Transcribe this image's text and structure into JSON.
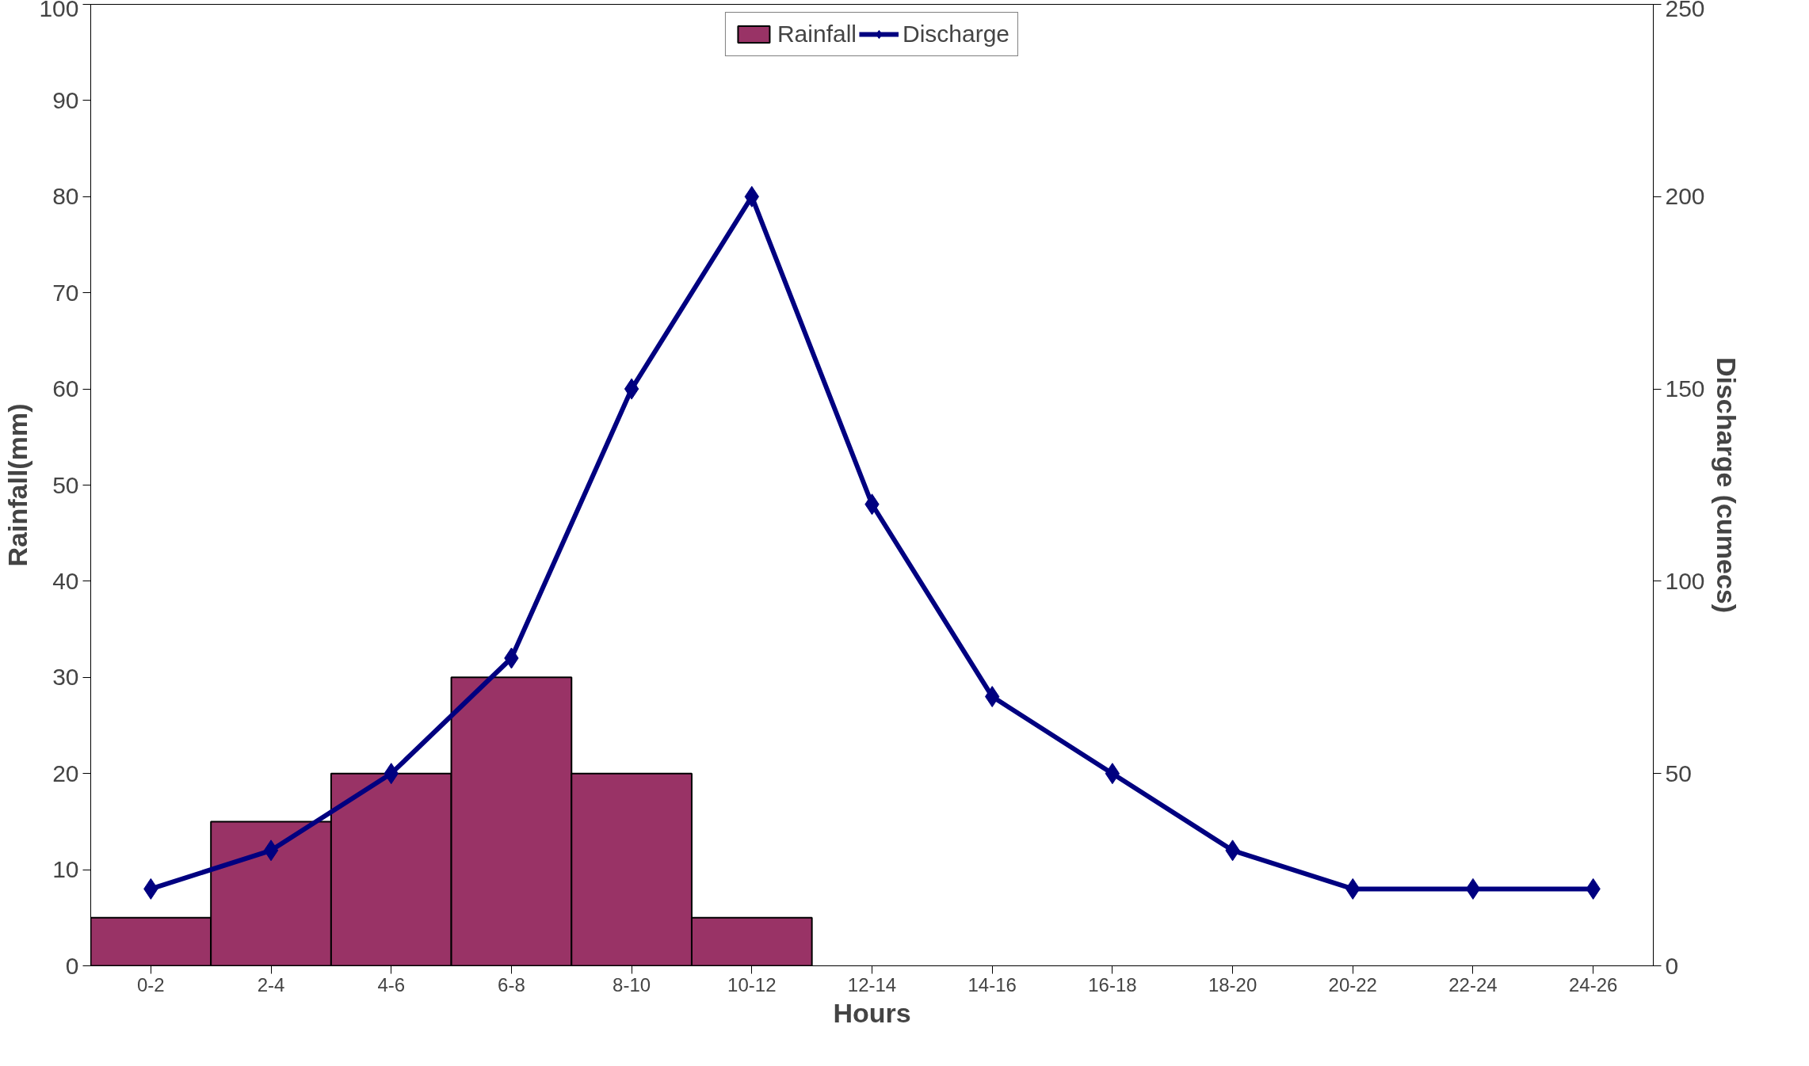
{
  "chart_data": {
    "type": "bar",
    "xlabel": "Hours",
    "ylabel": "Rainfall(mm)",
    "y2label": "Discharge (cumecs)",
    "categories": [
      "0-2",
      "2-4",
      "4-6",
      "6-8",
      "8-10",
      "10-12",
      "12-14",
      "14-16",
      "16-18",
      "18-20",
      "20-22",
      "22-24",
      "24-26"
    ],
    "series": [
      {
        "name": "Rainfall",
        "color": "#993366",
        "values": [
          5,
          15,
          20,
          30,
          20,
          5,
          null,
          null,
          null,
          null,
          null,
          null,
          null
        ]
      },
      {
        "name": "Discharge",
        "type": "line",
        "axis": "y2",
        "color": "#000080",
        "marker": "diamond",
        "values": [
          20,
          30,
          50,
          80,
          150,
          200,
          120,
          70,
          50,
          30,
          20,
          20,
          20
        ]
      }
    ],
    "ylim": [
      0,
      100
    ],
    "yticks": [
      0,
      10,
      20,
      30,
      40,
      50,
      60,
      70,
      80,
      90,
      100
    ],
    "y2lim": [
      0,
      250
    ],
    "y2ticks": [
      0,
      50,
      100,
      150,
      200,
      250
    ],
    "grid": false,
    "legend": "top"
  }
}
